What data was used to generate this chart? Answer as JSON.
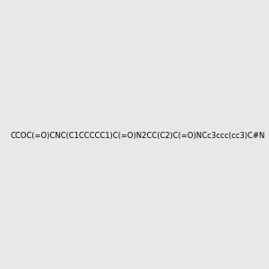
{
  "smiles": "CCOC(=O)CNC(C1CCCCC1)C(=O)N2CC(C2)C(=O)NCc3ccc(cc3)C#N",
  "image_size": 300,
  "background_color": "#e8e8e8",
  "title": ""
}
